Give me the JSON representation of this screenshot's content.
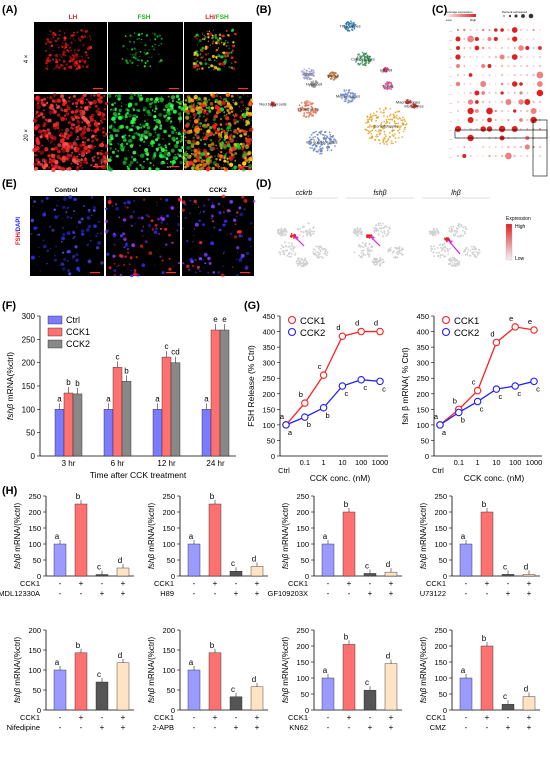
{
  "panels": {
    "A": {
      "label": "(A)",
      "headers": [
        {
          "text": "LH",
          "color": "#e02020"
        },
        {
          "text": "FSH",
          "color": "#20b020"
        },
        {
          "text": "LH/FSH",
          "color": "#e02020"
        }
      ],
      "rows": [
        "4 ×",
        "20 ×"
      ]
    },
    "B": {
      "label": "(B)",
      "clusters": [
        "Thyrotropes",
        "Corticotropes",
        "Igfl cell",
        "Pomc",
        "Gliac",
        "Th cell",
        "Red blood cells",
        "Lactotropes",
        "Melanotropes",
        "Somatotropes",
        "Macrophages",
        "Monocytes",
        "Blc gonadotropes",
        "Hypo cell"
      ]
    },
    "C": {
      "label": "(C)",
      "legend_title_left": "Average expression",
      "legend_title_right": "Percent expressed",
      "legend_low": "Low",
      "legend_high": "High"
    },
    "D": {
      "label": "(D)",
      "genes": [
        "cckrb",
        "fshβ",
        "lhβ"
      ],
      "legend_title": "Expression",
      "legend_high": "High",
      "legend_low": "Low"
    },
    "E": {
      "label": "(E)",
      "headers": [
        "Control",
        "CCK1",
        "CCK2"
      ],
      "side": "FSH/DAPI"
    },
    "F": {
      "label": "(F)"
    },
    "G": {
      "label": "(G)"
    },
    "H": {
      "label": "(H)"
    }
  },
  "colors": {
    "ctrl": "#7b7bff",
    "cck1": "#ff7070",
    "cck2": "#888888",
    "cck_ctrl_bar": "#9a9aff",
    "inh_bar": "#555555",
    "combo_bar": "#ffe4c4",
    "red_line": "#ff2020",
    "blue_line": "#2020ff"
  },
  "chart_data": [
    {
      "panel": "F",
      "type": "bar",
      "categories": [
        "3 hr",
        "6 hr",
        "12 hr",
        "24 hr"
      ],
      "xlabel": "Time after CCK treatment",
      "ylabel": "fshβ mRNA(%ctrl)",
      "ylim": [
        0,
        300
      ],
      "yticks": [
        0,
        50,
        100,
        150,
        200,
        250,
        300
      ],
      "legend": [
        "Ctrl",
        "CCK1",
        "CCK2"
      ],
      "series": [
        {
          "name": "Ctrl",
          "values": [
            100,
            100,
            100,
            100
          ],
          "letters": [
            "a",
            "a",
            "a",
            "a"
          ]
        },
        {
          "name": "CCK1",
          "values": [
            135,
            190,
            212,
            270
          ],
          "letters": [
            "b",
            "c",
            "c",
            "e"
          ]
        },
        {
          "name": "CCK2",
          "values": [
            133,
            160,
            200,
            270
          ],
          "letters": [
            "b",
            "b",
            "cd",
            "e"
          ]
        }
      ]
    },
    {
      "panel": "G1",
      "type": "line",
      "x": [
        "Ctrl",
        "0.1",
        "1",
        "10",
        "100",
        "1000"
      ],
      "xlabel": "CCK conc. (nM)",
      "ylabel": "FSH Release (% Ctrl)",
      "ylim": [
        0,
        450
      ],
      "yticks": [
        0,
        50,
        100,
        150,
        200,
        250,
        300,
        350,
        400,
        450
      ],
      "series": [
        {
          "name": "CCK1",
          "values": [
            100,
            170,
            260,
            385,
            400,
            400
          ],
          "letters": [
            "a",
            "b",
            "c",
            "d",
            "d",
            "d"
          ]
        },
        {
          "name": "CCK2",
          "values": [
            100,
            125,
            155,
            225,
            245,
            240
          ],
          "letters": [
            "a",
            "b",
            "b",
            "c",
            "c",
            "c"
          ]
        }
      ]
    },
    {
      "panel": "G2",
      "type": "line",
      "x": [
        "Ctrl",
        "0.1",
        "1",
        "10",
        "100",
        "1000"
      ],
      "xlabel": "CCK conc. (nM)",
      "ylabel": "fsh β mRNA( % Ctrl)",
      "ylim": [
        0,
        450
      ],
      "yticks": [
        0,
        50,
        100,
        150,
        200,
        250,
        300,
        350,
        400,
        450
      ],
      "series": [
        {
          "name": "CCK1",
          "values": [
            100,
            150,
            210,
            365,
            415,
            405
          ],
          "letters": [
            "a",
            "b",
            "c",
            "d",
            "e",
            "e"
          ]
        },
        {
          "name": "CCK2",
          "values": [
            100,
            140,
            175,
            215,
            225,
            240
          ],
          "letters": [
            "a",
            "b",
            "c",
            "c",
            "c",
            "c"
          ]
        }
      ]
    },
    {
      "panel": "H1",
      "type": "bar",
      "ylabel": "fshβ mRNA/(%ctrl)",
      "ylim": [
        0,
        250
      ],
      "yticks": [
        0,
        50,
        100,
        150,
        200,
        250
      ],
      "rows": [
        {
          "name": "CCK1",
          "signs": [
            "-",
            "+",
            "-",
            "+"
          ]
        },
        {
          "name": "MDL12330A",
          "signs": [
            "-",
            "-",
            "+",
            "+"
          ]
        }
      ],
      "values": [
        100,
        225,
        3,
        25
      ],
      "letters": [
        "a",
        "b",
        "c",
        "d"
      ]
    },
    {
      "panel": "H2",
      "type": "bar",
      "ylabel": "fshβ mRNA/(%ctrl)",
      "ylim": [
        0,
        250
      ],
      "yticks": [
        0,
        50,
        100,
        150,
        200,
        250
      ],
      "rows": [
        {
          "name": "CCK1",
          "signs": [
            "-",
            "+",
            "-",
            "+"
          ]
        },
        {
          "name": "H89",
          "signs": [
            "-",
            "-",
            "+",
            "+"
          ]
        }
      ],
      "values": [
        100,
        225,
        15,
        30
      ],
      "letters": [
        "a",
        "b",
        "c",
        "d"
      ]
    },
    {
      "panel": "H3",
      "type": "bar",
      "ylabel": "fshβ mRNA/(%ctrl)",
      "ylim": [
        0,
        250
      ],
      "yticks": [
        0,
        50,
        100,
        150,
        200,
        250
      ],
      "rows": [
        {
          "name": "CCK1",
          "signs": [
            "-",
            "+",
            "-",
            "+"
          ]
        },
        {
          "name": "GF109203X",
          "signs": [
            "-",
            "-",
            "+",
            "+"
          ]
        }
      ],
      "values": [
        100,
        200,
        8,
        12
      ],
      "letters": [
        "a",
        "b",
        "c",
        "d"
      ]
    },
    {
      "panel": "H4",
      "type": "bar",
      "ylabel": "fshβ mRNA/(%ctrl)",
      "ylim": [
        0,
        250
      ],
      "yticks": [
        0,
        50,
        100,
        150,
        200,
        250
      ],
      "rows": [
        {
          "name": "CCK1",
          "signs": [
            "-",
            "+",
            "-",
            "+"
          ]
        },
        {
          "name": "U73122",
          "signs": [
            "-",
            "-",
            "+",
            "+"
          ]
        }
      ],
      "values": [
        100,
        200,
        5,
        5
      ],
      "letters": [
        "a",
        "b",
        "c",
        "d"
      ]
    },
    {
      "panel": "H5",
      "type": "bar",
      "ylabel": "fshβ mRNA/(%ctrl)",
      "ylim": [
        0,
        200
      ],
      "yticks": [
        0,
        50,
        100,
        150,
        200
      ],
      "rows": [
        {
          "name": "CCK1",
          "signs": [
            "-",
            "+",
            "-",
            "+"
          ]
        },
        {
          "name": "Nifedipine",
          "signs": [
            "-",
            "-",
            "+",
            "+"
          ]
        }
      ],
      "values": [
        100,
        143,
        70,
        118
      ],
      "letters": [
        "a",
        "b",
        "c",
        "d"
      ]
    },
    {
      "panel": "H6",
      "type": "bar",
      "ylabel": "fshβ mRNA/(%ctrl)",
      "ylim": [
        0,
        200
      ],
      "yticks": [
        0,
        50,
        100,
        150,
        200
      ],
      "rows": [
        {
          "name": "CCK1",
          "signs": [
            "-",
            "+",
            "-",
            "+"
          ]
        },
        {
          "name": "2-APB",
          "signs": [
            "-",
            "-",
            "+",
            "+"
          ]
        }
      ],
      "values": [
        100,
        143,
        33,
        58
      ],
      "letters": [
        "a",
        "b",
        "c",
        "d"
      ]
    },
    {
      "panel": "H7",
      "type": "bar",
      "ylabel": "fshβ mRNA/(%ctrl)",
      "ylim": [
        0,
        250
      ],
      "yticks": [
        0,
        50,
        100,
        150,
        200,
        250
      ],
      "rows": [
        {
          "name": "CCK1",
          "signs": [
            "-",
            "+",
            "-",
            "+"
          ]
        },
        {
          "name": "KN62",
          "signs": [
            "-",
            "-",
            "+",
            "+"
          ]
        }
      ],
      "values": [
        100,
        205,
        62,
        145
      ],
      "letters": [
        "a",
        "b",
        "c",
        "d"
      ]
    },
    {
      "panel": "H8",
      "type": "bar",
      "ylabel": "fshβ mRNA/(%ctrl)",
      "ylim": [
        0,
        250
      ],
      "yticks": [
        0,
        50,
        100,
        150,
        200,
        250
      ],
      "rows": [
        {
          "name": "CCK1",
          "signs": [
            "-",
            "+",
            "-",
            "+"
          ]
        },
        {
          "name": "CMZ",
          "signs": [
            "-",
            "-",
            "+",
            "+"
          ]
        }
      ],
      "values": [
        100,
        200,
        18,
        42
      ],
      "letters": [
        "a",
        "b",
        "c",
        "d"
      ]
    }
  ]
}
